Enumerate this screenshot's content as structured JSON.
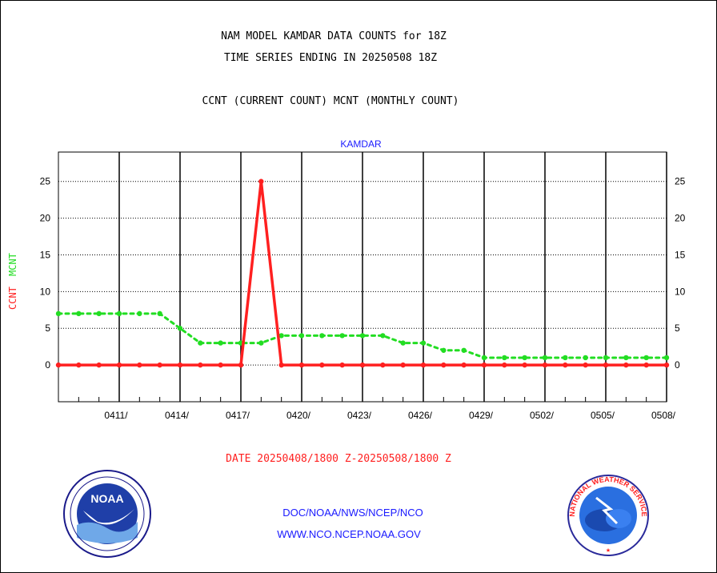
{
  "header": {
    "line1": "NAM MODEL KAMDAR DATA COUNTS for 18Z",
    "line2": "TIME SERIES ENDING IN 20250508 18Z",
    "line3": "CCNT (CURRENT COUNT) MCNT (MONTHLY COUNT)"
  },
  "footer": {
    "date_range": "DATE 20250408/1800 Z-20250508/1800 Z",
    "org": "DOC/NOAA/NWS/NCEP/NCO",
    "url": "WWW.NCO.NCEP.NOAA.GOV"
  },
  "logos": {
    "noaa_text": "NOAA",
    "nws_text": "NATIONAL WEATHER SERVICE"
  },
  "colors": {
    "ccnt": "#ff2020",
    "mcnt": "#22dd22",
    "title_blue": "#1a1aff",
    "grid": "#000000"
  },
  "chart_data": {
    "type": "line",
    "title": "KAMDAR",
    "xlabel": "",
    "ylabel_series": [
      "CCNT",
      "MCNT"
    ],
    "xlim": [
      0,
      30
    ],
    "ylim": [
      -5,
      29
    ],
    "yticks": [
      0,
      5,
      10,
      15,
      20,
      25
    ],
    "xtick_positions": [
      3,
      6,
      9,
      12,
      15,
      18,
      21,
      24,
      27,
      30
    ],
    "xtick_labels": [
      "0411/",
      "0414/",
      "0417/",
      "0420/",
      "0423/",
      "0426/",
      "0429/",
      "0502/",
      "0505/",
      "0508/"
    ],
    "grid": true,
    "x": [
      0,
      1,
      2,
      3,
      4,
      5,
      6,
      7,
      8,
      9,
      10,
      11,
      12,
      13,
      14,
      15,
      16,
      17,
      18,
      19,
      20,
      21,
      22,
      23,
      24,
      25,
      26,
      27,
      28,
      29,
      30
    ],
    "series": [
      {
        "name": "CCNT",
        "color": "#ff2020",
        "values": [
          0,
          0,
          0,
          0,
          0,
          0,
          0,
          0,
          0,
          0,
          25,
          0,
          0,
          0,
          0,
          0,
          0,
          0,
          0,
          0,
          0,
          0,
          0,
          0,
          0,
          0,
          0,
          0,
          0,
          0,
          0
        ]
      },
      {
        "name": "MCNT",
        "color": "#22dd22",
        "values": [
          7,
          7,
          7,
          7,
          7,
          7,
          5,
          3,
          3,
          3,
          3,
          4,
          4,
          4,
          4,
          4,
          4,
          3,
          3,
          2,
          2,
          1,
          1,
          1,
          1,
          1,
          1,
          1,
          1,
          1,
          1
        ]
      }
    ]
  }
}
